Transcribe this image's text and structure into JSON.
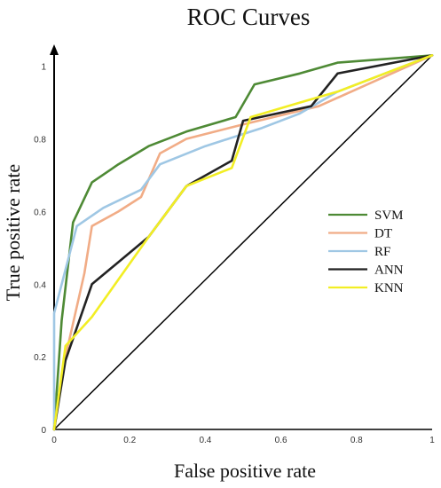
{
  "chart_data": {
    "type": "line",
    "title": "ROC Curves",
    "xlabel": "False positive rate",
    "ylabel": "True positive rate",
    "xlim": [
      0,
      1
    ],
    "ylim": [
      0,
      1
    ],
    "x_ticks": [
      "0",
      "0.2",
      "0.4",
      "0.6",
      "0.8",
      "1"
    ],
    "x_tick_values": [
      0,
      0.2,
      0.4,
      0.6,
      0.8,
      1
    ],
    "y_ticks": [
      "0",
      "0.2",
      "0.4",
      "0.6",
      "0.8",
      "1"
    ],
    "y_tick_values": [
      0,
      0.2,
      0.4,
      0.6,
      0.8,
      1
    ],
    "grid": false,
    "legend_position": "right",
    "series": [
      {
        "name": "SVM",
        "color": "#4e8a35",
        "points": [
          [
            0,
            0
          ],
          [
            0.02,
            0.3
          ],
          [
            0.05,
            0.57
          ],
          [
            0.1,
            0.68
          ],
          [
            0.17,
            0.73
          ],
          [
            0.25,
            0.78
          ],
          [
            0.35,
            0.82
          ],
          [
            0.48,
            0.86
          ],
          [
            0.53,
            0.95
          ],
          [
            0.65,
            0.98
          ],
          [
            0.75,
            1.01
          ],
          [
            1,
            1.03
          ]
        ]
      },
      {
        "name": "DT",
        "color": "#f1ac86",
        "points": [
          [
            0,
            0
          ],
          [
            0.03,
            0.2
          ],
          [
            0.08,
            0.43
          ],
          [
            0.1,
            0.56
          ],
          [
            0.17,
            0.6
          ],
          [
            0.23,
            0.64
          ],
          [
            0.28,
            0.76
          ],
          [
            0.35,
            0.8
          ],
          [
            0.5,
            0.84
          ],
          [
            0.7,
            0.89
          ],
          [
            1,
            1.03
          ]
        ]
      },
      {
        "name": "RF",
        "color": "#9fc7e4",
        "points": [
          [
            0,
            0
          ],
          [
            0,
            0.32
          ],
          [
            0.06,
            0.56
          ],
          [
            0.13,
            0.61
          ],
          [
            0.23,
            0.66
          ],
          [
            0.28,
            0.73
          ],
          [
            0.4,
            0.78
          ],
          [
            0.55,
            0.83
          ],
          [
            0.65,
            0.87
          ],
          [
            0.75,
            0.93
          ],
          [
            1,
            1.03
          ]
        ]
      },
      {
        "name": "ANN",
        "color": "#222222",
        "points": [
          [
            0,
            0
          ],
          [
            0.03,
            0.19
          ],
          [
            0.1,
            0.4
          ],
          [
            0.25,
            0.53
          ],
          [
            0.35,
            0.67
          ],
          [
            0.47,
            0.74
          ],
          [
            0.5,
            0.85
          ],
          [
            0.68,
            0.89
          ],
          [
            0.75,
            0.98
          ],
          [
            1,
            1.03
          ]
        ]
      },
      {
        "name": "KNN",
        "color": "#f2ee24",
        "points": [
          [
            0,
            0
          ],
          [
            0.03,
            0.23
          ],
          [
            0.1,
            0.31
          ],
          [
            0.25,
            0.53
          ],
          [
            0.35,
            0.67
          ],
          [
            0.47,
            0.72
          ],
          [
            0.52,
            0.86
          ],
          [
            0.65,
            0.9
          ],
          [
            0.75,
            0.93
          ],
          [
            1,
            1.03
          ]
        ]
      }
    ],
    "diagonal": {
      "color": "#000000",
      "from": [
        0,
        0
      ],
      "to": [
        1,
        1.03
      ]
    }
  }
}
